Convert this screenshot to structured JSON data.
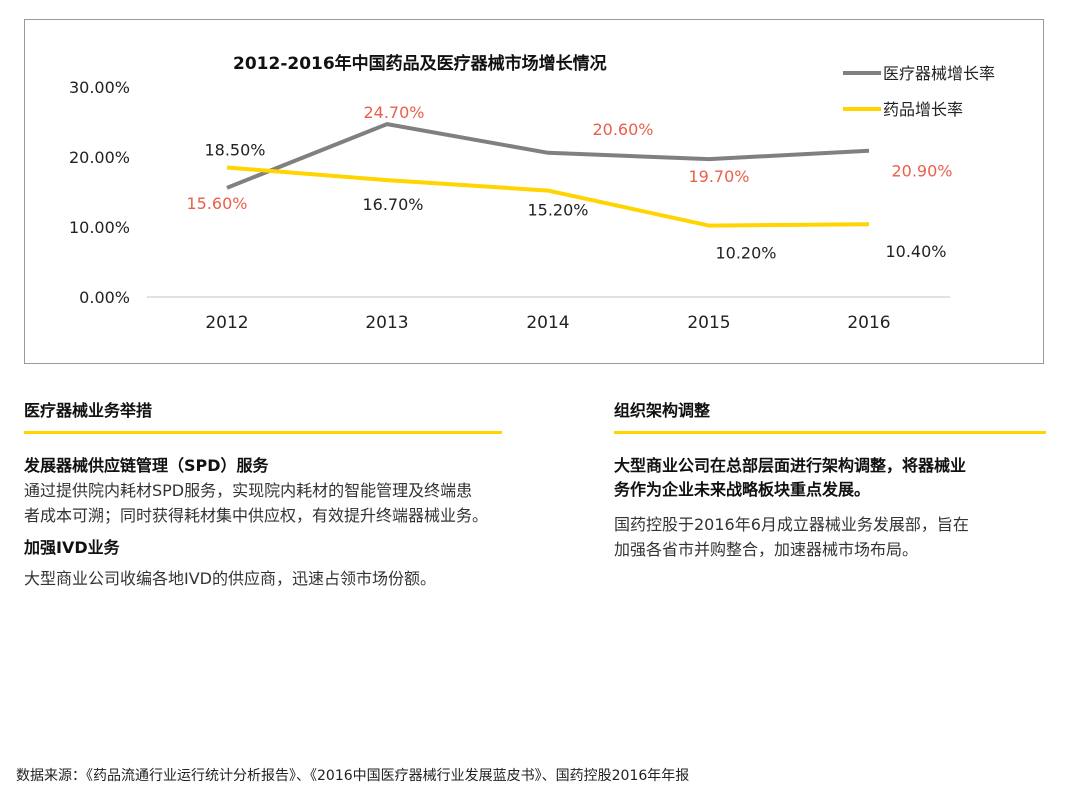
{
  "chart_data": {
    "type": "line",
    "title": "2012-2016年中国药品及医疗器械市场增长情况",
    "categories": [
      "2012",
      "2013",
      "2014",
      "2015",
      "2016"
    ],
    "y_ticks": [
      "30.00%",
      "20.00%",
      "10.00%",
      "0.00%"
    ],
    "ylim": [
      0,
      30
    ],
    "grid": false,
    "legend_position": "top-right",
    "series": [
      {
        "name": "医疗器械增长率",
        "values": [
          15.6,
          24.7,
          20.6,
          19.7,
          20.9
        ],
        "labels": [
          "15.60%",
          "24.70%",
          "20.60%",
          "19.70%",
          "20.90%"
        ],
        "color": "#808080",
        "label_color": "#e8604c"
      },
      {
        "name": "药品增长率",
        "values": [
          18.5,
          16.7,
          15.2,
          10.2,
          10.4
        ],
        "labels": [
          "18.50%",
          "16.70%",
          "15.20%",
          "10.20%",
          "10.40%"
        ],
        "color": "#ffd400",
        "label_color": "#222222"
      }
    ]
  },
  "left_section": {
    "title": "医疗器械业务举措",
    "items": [
      {
        "title": "发展器械供应链管理（SPD）服务",
        "lines": [
          "通过提供院内耗材SPD服务，实现院内耗材的智能管理及终端患",
          "者成本可溯；同时获得耗材集中供应权，有效提升终端器械业务。"
        ]
      },
      {
        "title": "加强IVD业务",
        "lines": [
          "大型商业公司收编各地IVD的供应商，迅速占领市场份额。"
        ]
      }
    ]
  },
  "right_section": {
    "title": "组织架构调整",
    "bold_lines": [
      "大型商业公司在总部层面进行架构调整，将器械业",
      "务作为企业未来战略板块重点发展。"
    ],
    "lines": [
      "国药控股于2016年6月成立器械业务发展部，旨在",
      "加强各省市并购整合，加速器械市场布局。"
    ]
  },
  "source": "数据来源：《药品流通行业运行统计分析报告》、《2016中国医疗器械行业发展蓝皮书》、国药控股2016年年报"
}
